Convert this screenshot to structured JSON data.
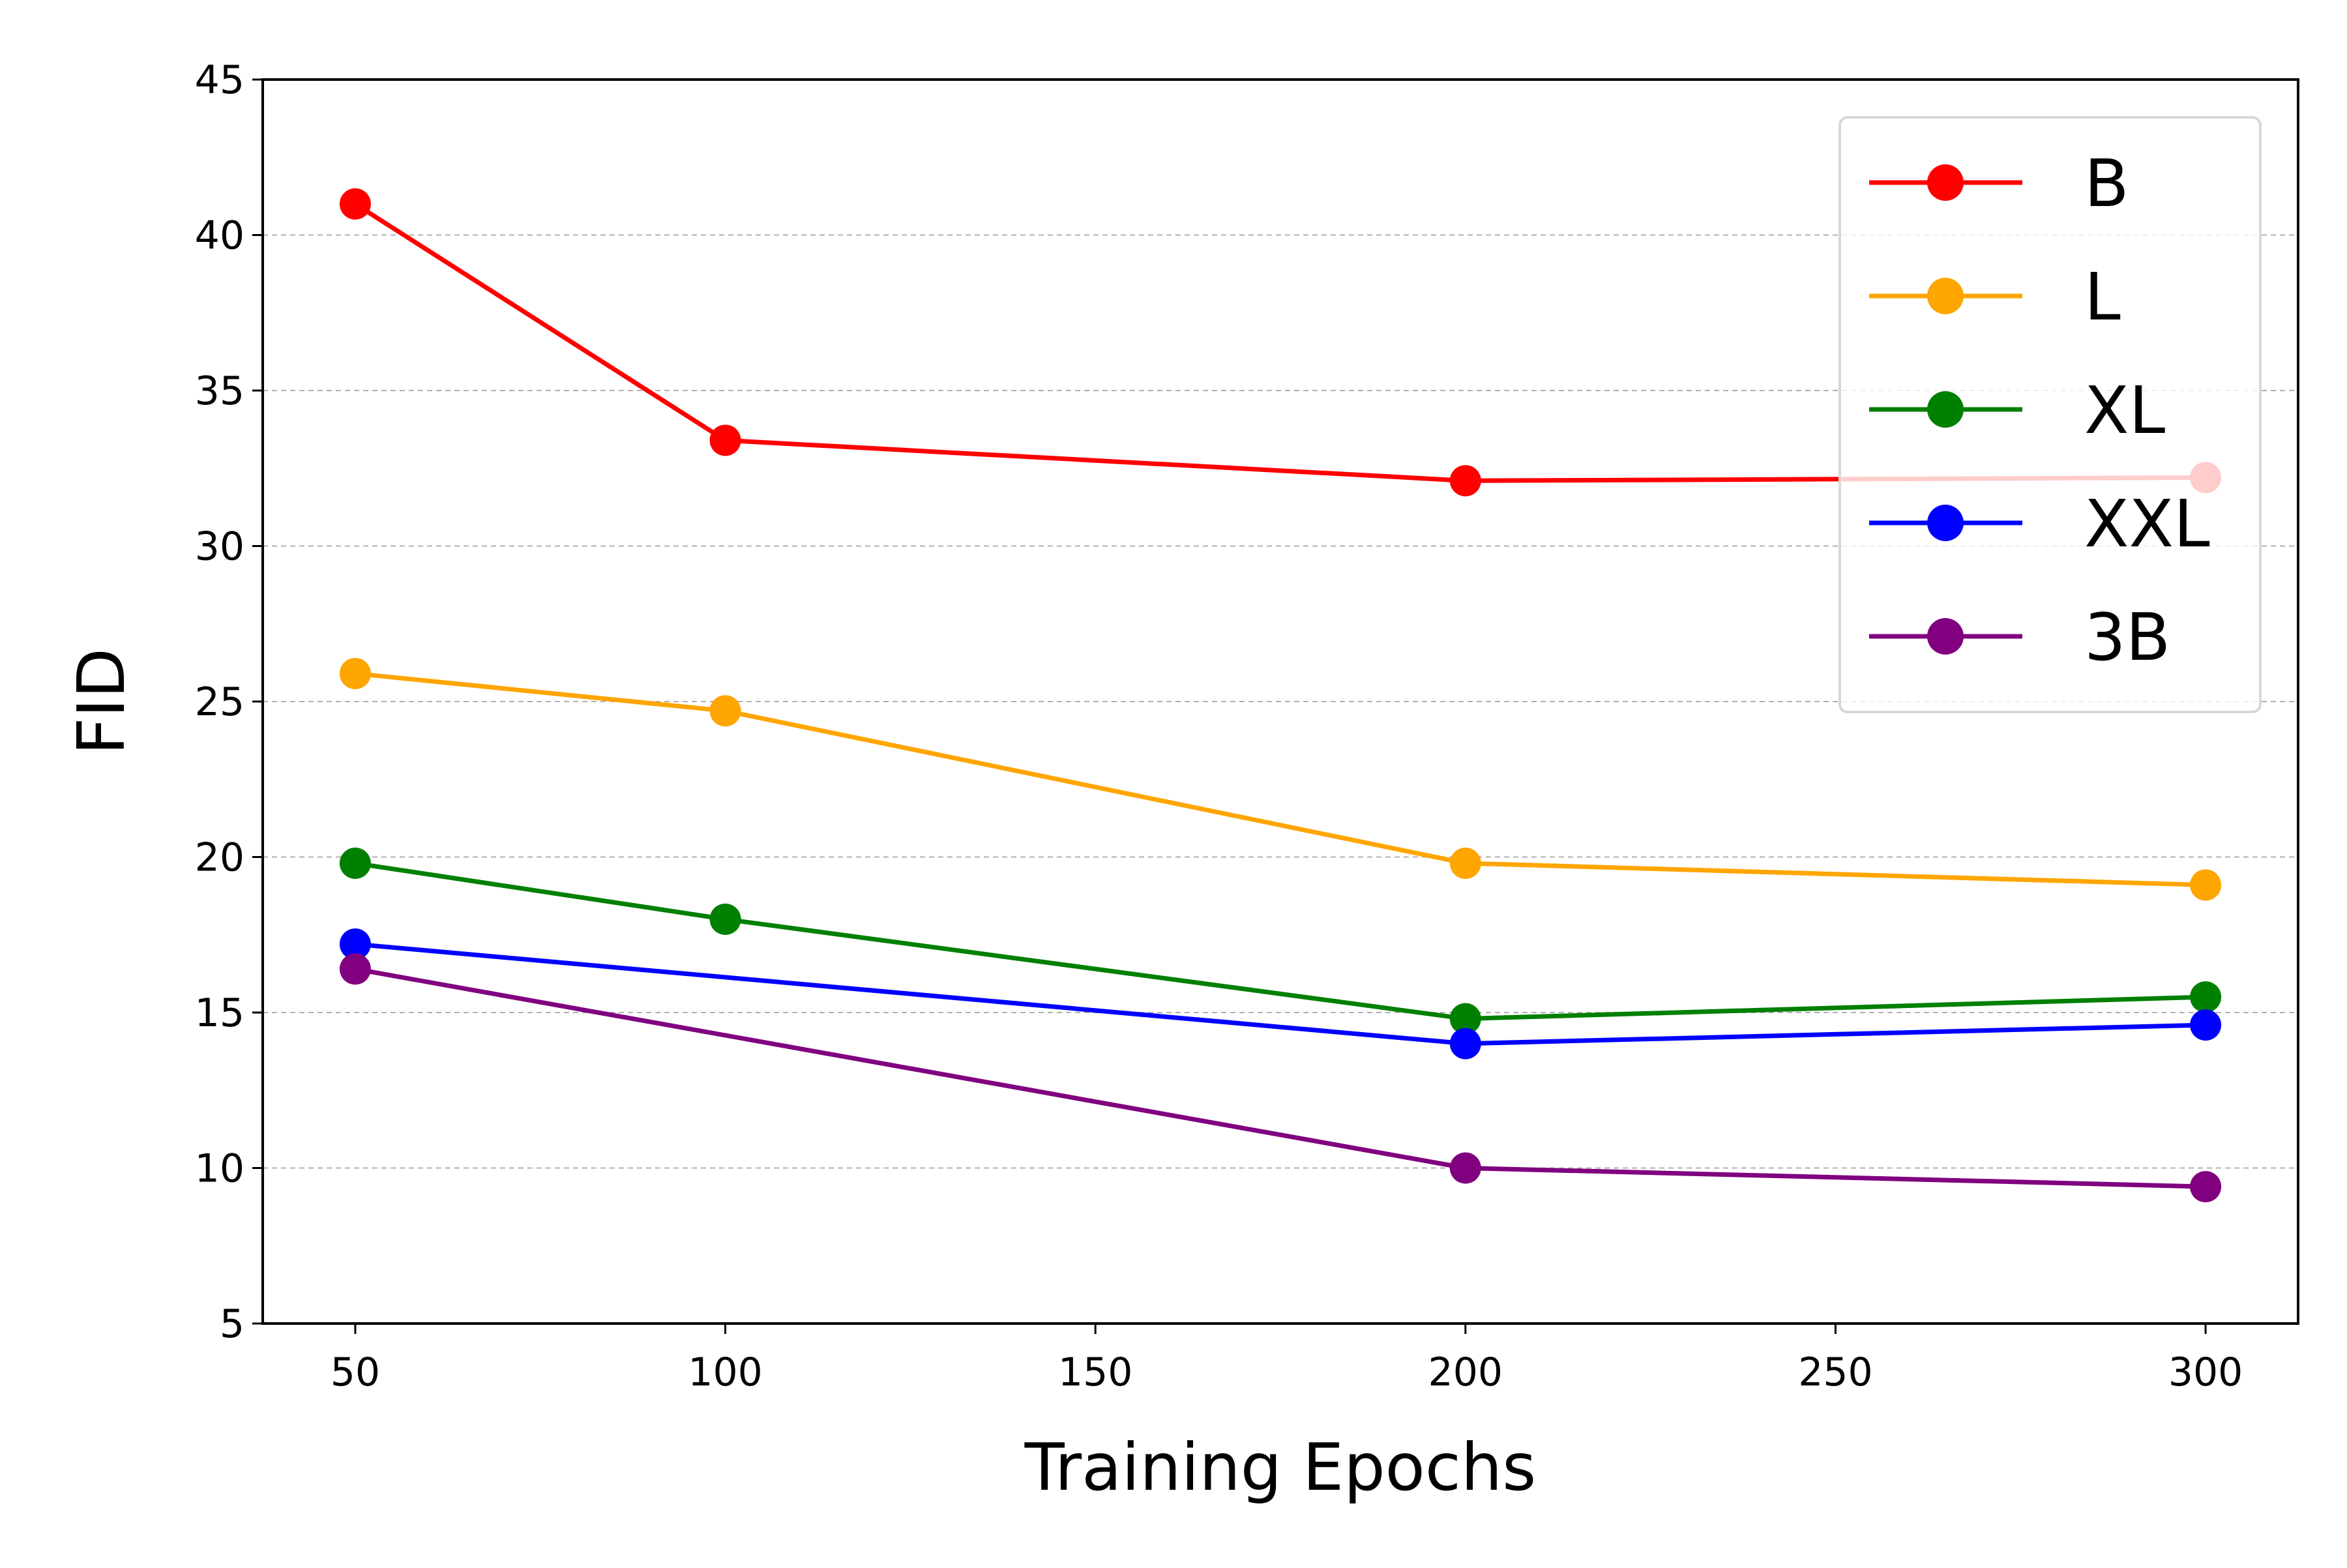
{
  "chart_data": {
    "type": "line",
    "title": "",
    "xlabel": "Training Epochs",
    "ylabel": "FID",
    "x": [
      50,
      100,
      200,
      300
    ],
    "xlim": [
      37.5,
      312.5
    ],
    "ylim": [
      5,
      45
    ],
    "xticks": [
      50,
      100,
      150,
      200,
      250,
      300
    ],
    "yticks": [
      5,
      10,
      15,
      20,
      25,
      30,
      35,
      40,
      45
    ],
    "grid": "horizontal-dashed",
    "legend_position": "top-right",
    "series": [
      {
        "name": "B",
        "color": "#ff0000",
        "values": [
          41.0,
          33.4,
          32.1,
          32.2
        ]
      },
      {
        "name": "L",
        "color": "#ffa500",
        "values": [
          25.9,
          24.7,
          19.8,
          19.1
        ]
      },
      {
        "name": "XL",
        "color": "#008000",
        "values": [
          19.8,
          18.0,
          14.8,
          15.5
        ]
      },
      {
        "name": "XXL",
        "color": "#0000ff",
        "values": [
          17.2,
          null,
          14.0,
          14.6
        ]
      },
      {
        "name": "3B",
        "color": "#800080",
        "values": [
          16.4,
          null,
          10.0,
          9.4
        ]
      }
    ]
  }
}
